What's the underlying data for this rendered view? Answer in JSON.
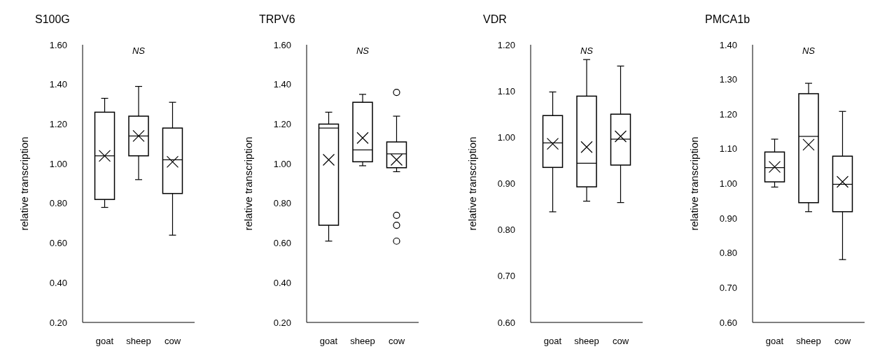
{
  "chart_data": [
    {
      "type": "box",
      "title": "S100G",
      "ylabel": "relative transcription",
      "categories": [
        "goat",
        "sheep",
        "cow"
      ],
      "color": "#000000",
      "annotations": [
        "NS"
      ],
      "grid": false,
      "ylim": [
        0.2,
        1.6
      ],
      "yticks": [
        {
          "value": 0.2,
          "label": "0.20"
        },
        {
          "value": 0.4,
          "label": "0.40"
        },
        {
          "value": 0.6,
          "label": "0.60"
        },
        {
          "value": 0.8,
          "label": "0.80"
        },
        {
          "value": 1.0,
          "label": "1.00"
        },
        {
          "value": 1.2,
          "label": "1.20"
        },
        {
          "value": 1.4,
          "label": "1.40"
        },
        {
          "value": 1.6,
          "label": "1.60"
        }
      ],
      "boxes": [
        {
          "low": 0.78,
          "q1": 0.82,
          "median": 1.04,
          "q3": 1.26,
          "high": 1.33,
          "mean": 1.04
        },
        {
          "low": 0.92,
          "q1": 1.04,
          "median": 1.14,
          "q3": 1.24,
          "high": 1.39,
          "mean": 1.14
        },
        {
          "low": 0.64,
          "q1": 0.85,
          "median": 1.02,
          "q3": 1.18,
          "high": 1.31,
          "mean": 1.01
        }
      ]
    },
    {
      "type": "box",
      "title": "TRPV6",
      "ylabel": "relative transcription",
      "categories": [
        "goat",
        "sheep",
        "cow"
      ],
      "color": "#000000",
      "annotations": [
        "NS"
      ],
      "grid": false,
      "ylim": [
        0.2,
        1.6
      ],
      "yticks": [
        {
          "value": 0.2,
          "label": "0.20"
        },
        {
          "value": 0.4,
          "label": "0.40"
        },
        {
          "value": 0.6,
          "label": "0.60"
        },
        {
          "value": 0.8,
          "label": "0.80"
        },
        {
          "value": 1.0,
          "label": "1.00"
        },
        {
          "value": 1.2,
          "label": "1.20"
        },
        {
          "value": 1.4,
          "label": "1.40"
        },
        {
          "value": 1.6,
          "label": "1.60"
        }
      ],
      "boxes": [
        {
          "low": 0.61,
          "q1": 0.69,
          "median": 1.18,
          "q3": 1.2,
          "high": 1.26,
          "mean": 1.02
        },
        {
          "low": 0.99,
          "q1": 1.01,
          "median": 1.07,
          "q3": 1.31,
          "high": 1.35,
          "mean": 1.13
        },
        {
          "low": 0.96,
          "q1": 0.98,
          "median": 1.05,
          "q3": 1.11,
          "high": 1.24,
          "mean": 1.02,
          "outliers": [
            1.36,
            0.74,
            0.69,
            0.61
          ]
        }
      ]
    },
    {
      "type": "box",
      "title": "VDR",
      "ylabel": "relative transcription",
      "categories": [
        "goat",
        "sheep",
        "cow"
      ],
      "color": "#000000",
      "annotations": [
        "NS"
      ],
      "grid": false,
      "ylim": [
        0.6,
        1.2
      ],
      "yticks": [
        {
          "value": 0.6,
          "label": "0.60"
        },
        {
          "value": 0.7,
          "label": "0.70"
        },
        {
          "value": 0.8,
          "label": "0.80"
        },
        {
          "value": 0.9,
          "label": "0.90"
        },
        {
          "value": 1.0,
          "label": "1.00"
        },
        {
          "value": 1.1,
          "label": "1.10"
        },
        {
          "value": 1.2,
          "label": "1.20"
        }
      ],
      "boxes": [
        {
          "low": 0.839,
          "q1": 0.935,
          "median": 0.988,
          "q3": 1.047,
          "high": 1.098,
          "mean": 0.986
        },
        {
          "low": 0.862,
          "q1": 0.893,
          "median": 0.944,
          "q3": 1.089,
          "high": 1.168,
          "mean": 0.979
        },
        {
          "low": 0.859,
          "q1": 0.94,
          "median": 0.996,
          "q3": 1.05,
          "high": 1.154,
          "mean": 1.002
        }
      ]
    },
    {
      "type": "box",
      "title": "PMCA1b",
      "ylabel": "relative transcription",
      "categories": [
        "goat",
        "sheep",
        "cow"
      ],
      "color": "#000000",
      "annotations": [
        "NS"
      ],
      "grid": false,
      "ylim": [
        0.6,
        1.4
      ],
      "yticks": [
        {
          "value": 0.6,
          "label": "0.60"
        },
        {
          "value": 0.7,
          "label": "0.70"
        },
        {
          "value": 0.8,
          "label": "0.80"
        },
        {
          "value": 0.9,
          "label": "0.90"
        },
        {
          "value": 1.0,
          "label": "1.00"
        },
        {
          "value": 1.1,
          "label": "1.10"
        },
        {
          "value": 1.2,
          "label": "1.20"
        },
        {
          "value": 1.3,
          "label": "1.30"
        },
        {
          "value": 1.4,
          "label": "1.40"
        }
      ],
      "boxes": [
        {
          "low": 0.99,
          "q1": 1.005,
          "median": 1.046,
          "q3": 1.091,
          "high": 1.128,
          "mean": 1.048
        },
        {
          "low": 0.919,
          "q1": 0.945,
          "median": 1.136,
          "q3": 1.259,
          "high": 1.289,
          "mean": 1.112
        },
        {
          "low": 0.781,
          "q1": 0.919,
          "median": 0.998,
          "q3": 1.079,
          "high": 1.208,
          "mean": 1.005
        }
      ]
    }
  ]
}
